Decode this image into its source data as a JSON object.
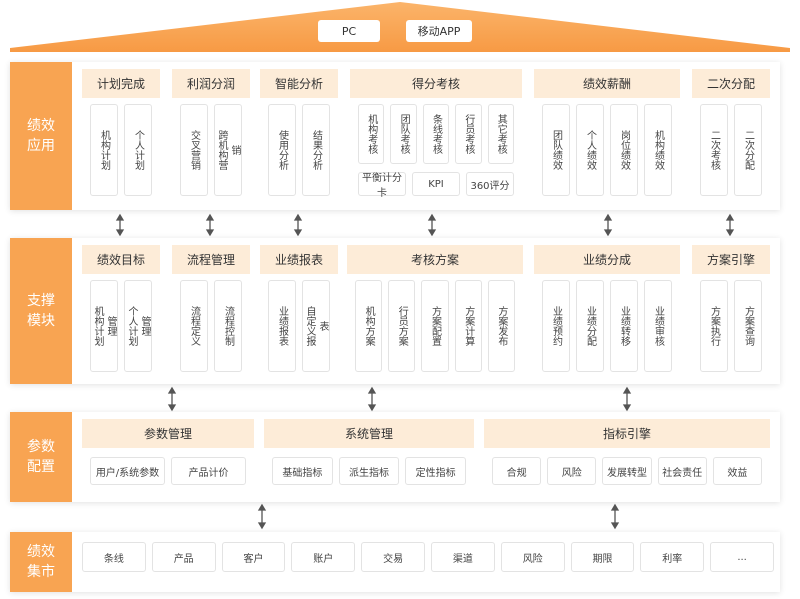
{
  "roof": {
    "buttons": [
      "PC",
      "移动APP"
    ]
  },
  "layers": [
    {
      "label": "绩效应用",
      "groups": [
        {
          "title": "计划完成",
          "items": [
            "机构计划",
            "个人计划"
          ]
        },
        {
          "title": "利润分润",
          "items": [
            "交叉营销",
            "跨机构营销"
          ]
        },
        {
          "title": "智能分析",
          "items": [
            "使用分析",
            "结果分析"
          ]
        },
        {
          "title": "得分考核",
          "items": [
            "机构考核",
            "团队考核",
            "条线考核",
            "行员考核",
            "其它考核"
          ],
          "extras": [
            "平衡计分卡",
            "KPI",
            "360评分"
          ]
        },
        {
          "title": "绩效薪酬",
          "items": [
            "团队绩效",
            "个人绩效",
            "岗位绩效",
            "机构绩效"
          ]
        },
        {
          "title": "二次分配",
          "items": [
            "二次考核",
            "二次分配"
          ]
        }
      ]
    },
    {
      "label": "支撑模块",
      "groups": [
        {
          "title": "绩效目标",
          "items": [
            "机构计划管理",
            "个人计划管理"
          ]
        },
        {
          "title": "流程管理",
          "items": [
            "流程定义",
            "流程控制"
          ]
        },
        {
          "title": "业绩报表",
          "items": [
            "业绩报表",
            "自定义报表"
          ]
        },
        {
          "title": "考核方案",
          "items": [
            "机构方案",
            "行员方案",
            "方案配置",
            "方案计算",
            "方案发布"
          ]
        },
        {
          "title": "业绩分成",
          "items": [
            "业绩预约",
            "业绩分配",
            "业绩转移",
            "业绩审核"
          ]
        },
        {
          "title": "方案引擎",
          "items": [
            "方案执行",
            "方案查询"
          ]
        }
      ]
    },
    {
      "label": "参数配置",
      "groups": [
        {
          "title": "参数管理",
          "items": [
            "用户/系统参数",
            "产品计价"
          ]
        },
        {
          "title": "系统管理",
          "items": [
            "基础指标",
            "派生指标",
            "定性指标"
          ]
        },
        {
          "title": "指标引擎",
          "items": [
            "合规",
            "风险",
            "发展转型",
            "社会责任",
            "效益"
          ]
        }
      ]
    },
    {
      "label": "绩效集市",
      "items": [
        "条线",
        "产品",
        "客户",
        "账户",
        "交易",
        "渠道",
        "风险",
        "期限",
        "利率",
        "..."
      ]
    }
  ]
}
